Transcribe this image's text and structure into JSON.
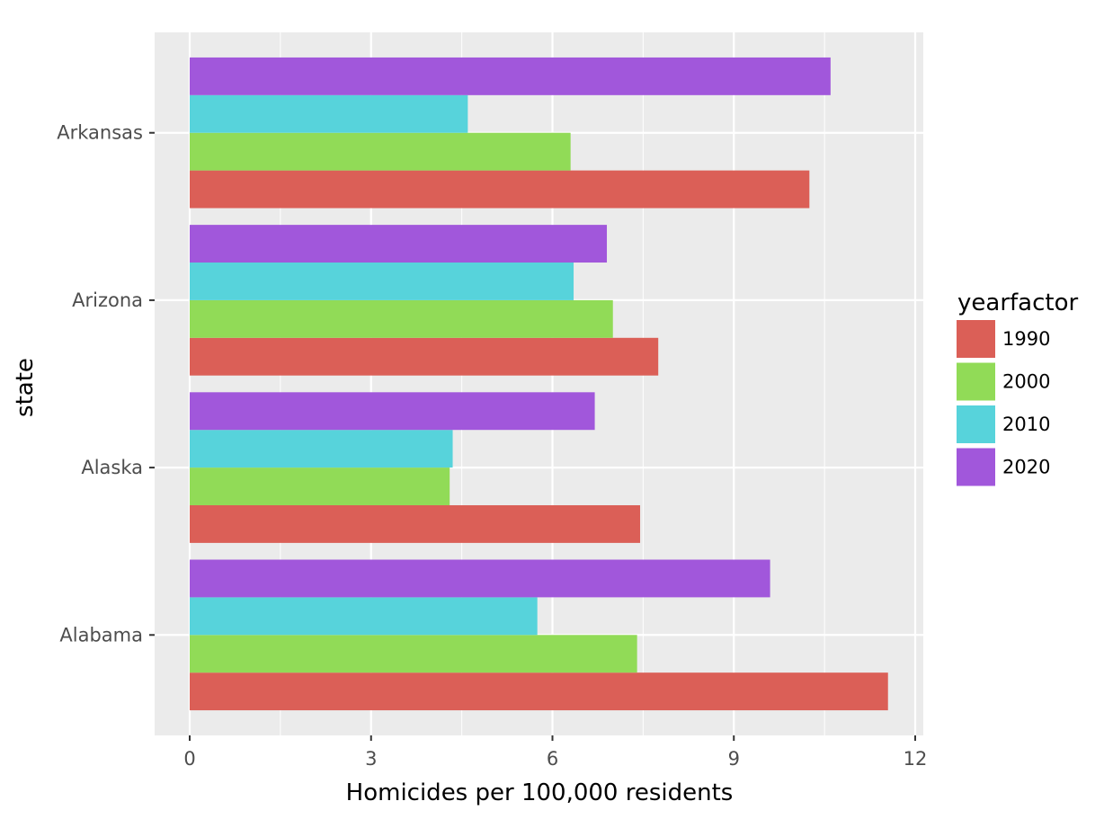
{
  "chart_data": {
    "type": "bar",
    "orientation": "horizontal",
    "position": "dodge",
    "categories": [
      "Alabama",
      "Alaska",
      "Arizona",
      "Arkansas"
    ],
    "series": [
      {
        "name": "1990",
        "color": "#db5f57",
        "values": [
          11.55,
          7.45,
          7.75,
          10.25
        ]
      },
      {
        "name": "2000",
        "color": "#91db57",
        "values": [
          7.4,
          4.3,
          7.0,
          6.3
        ]
      },
      {
        "name": "2010",
        "color": "#57d3db",
        "values": [
          5.75,
          4.35,
          6.35,
          4.6
        ]
      },
      {
        "name": "2020",
        "color": "#a157db",
        "values": [
          9.6,
          6.7,
          6.9,
          10.6
        ]
      }
    ],
    "xlabel": "Homicides per 100,000 residents",
    "ylabel": "state",
    "xlim": [
      0,
      12
    ],
    "xticks": [
      0,
      3,
      6,
      9,
      12
    ],
    "grid": true,
    "legend": {
      "title": "yearfactor",
      "position": "right"
    },
    "panel_background": "#ebebeb",
    "grid_color": "#ffffff"
  }
}
